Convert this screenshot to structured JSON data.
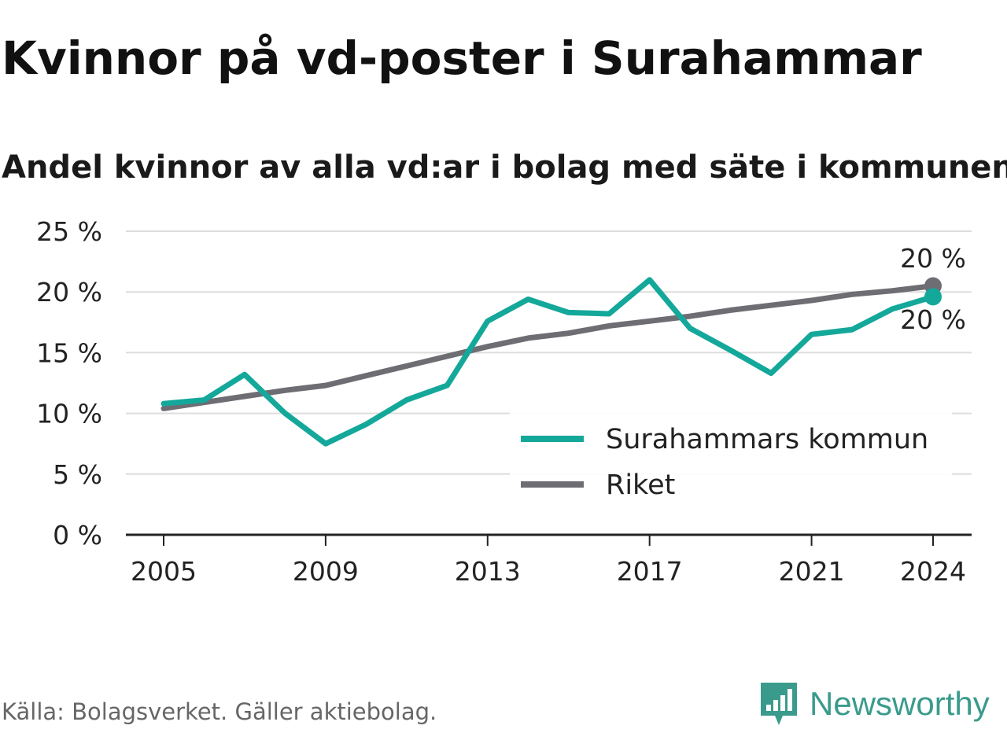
{
  "header": {
    "title": "Kvinnor på vd-poster i Surahammar",
    "subtitle": "Andel kvinnor av alla vd:ar i bolag med säte i kommunen"
  },
  "footer": {
    "source": "Källa: Bolagsverket. Gäller aktiebolag.",
    "brand": "Newsworthy"
  },
  "colors": {
    "surahammar": "#14a89a",
    "riket": "#6e6d74",
    "grid": "#dddddd",
    "brand": "#3a9b8c"
  },
  "chart_data": {
    "type": "line",
    "x": [
      2005,
      2006,
      2007,
      2008,
      2009,
      2010,
      2011,
      2012,
      2013,
      2014,
      2015,
      2016,
      2017,
      2018,
      2019,
      2020,
      2021,
      2022,
      2023,
      2024
    ],
    "series": [
      {
        "name": "Surahammars kommun",
        "color": "#14a89a",
        "values": [
          10.8,
          11.1,
          13.2,
          10.0,
          7.5,
          9.1,
          11.1,
          12.3,
          17.6,
          19.4,
          18.3,
          18.2,
          21.0,
          17.0,
          15.2,
          13.3,
          16.5,
          16.9,
          18.6,
          19.6
        ],
        "end_label": "20 %"
      },
      {
        "name": "Riket",
        "color": "#6e6d74",
        "values": [
          10.4,
          10.9,
          11.4,
          11.9,
          12.3,
          13.1,
          13.9,
          14.7,
          15.5,
          16.2,
          16.6,
          17.2,
          17.6,
          18.0,
          18.5,
          18.9,
          19.3,
          19.8,
          20.1,
          20.5
        ],
        "end_label": "20 %"
      }
    ],
    "x_ticks": [
      "2005",
      "2009",
      "2013",
      "2017",
      "2021",
      "2024"
    ],
    "y_ticks": [
      "0 %",
      "5 %",
      "10 %",
      "15 %",
      "20 %",
      "25 %"
    ],
    "ylim": [
      0,
      25
    ],
    "xlim": [
      2005,
      2024
    ],
    "grid": true,
    "legend": {
      "placement": "bottom-right",
      "items": [
        "Surahammars kommun",
        "Riket"
      ]
    }
  }
}
